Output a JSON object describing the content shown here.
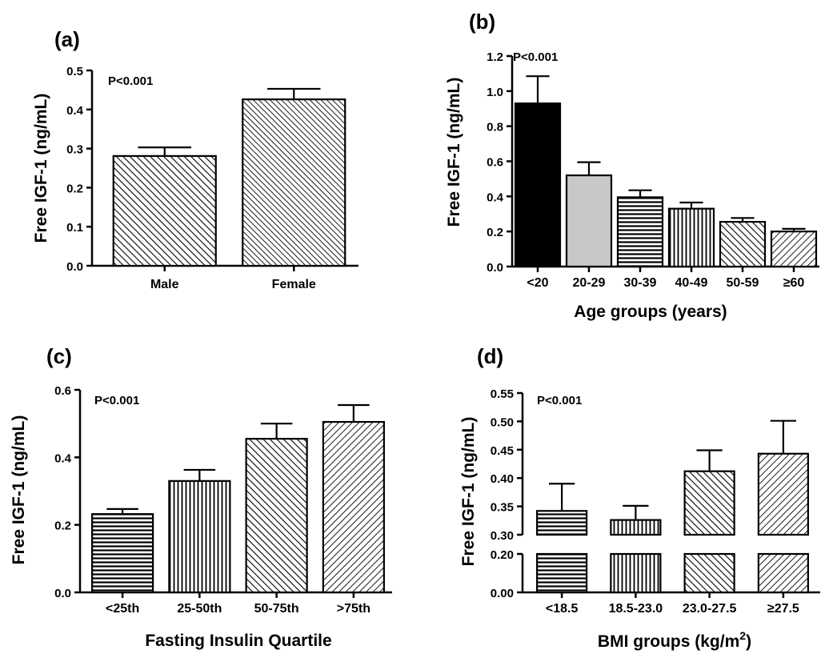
{
  "chart_data": [
    {
      "type": "bar",
      "panel": "(a)",
      "annotation": "P<0.001",
      "ylabel": "Free IGF-1 (ng/mL)",
      "xlabel": "",
      "categories": [
        "Male",
        "Female"
      ],
      "values": [
        0.281,
        0.426
      ],
      "errors": [
        0.022,
        0.027
      ],
      "ylim": [
        0,
        0.5
      ],
      "yticks": [
        "0.0",
        "0.1",
        "0.2",
        "0.3",
        "0.4",
        "0.5"
      ],
      "fills": [
        "hatch-back",
        "hatch-back-dense"
      ]
    },
    {
      "type": "bar",
      "panel": "(b)",
      "annotation": "P<0.001",
      "ylabel": "Free IGF-1 (ng/mL)",
      "xlabel": "Age groups (years)",
      "categories": [
        "<20",
        "20-29",
        "30-39",
        "40-49",
        "50-59",
        "≥60"
      ],
      "values": [
        0.93,
        0.52,
        0.395,
        0.33,
        0.255,
        0.2
      ],
      "errors": [
        0.155,
        0.075,
        0.04,
        0.035,
        0.022,
        0.015
      ],
      "ylim": [
        0,
        1.2
      ],
      "yticks": [
        "0.0",
        "0.2",
        "0.4",
        "0.6",
        "0.8",
        "1.0",
        "1.2"
      ],
      "fills": [
        "solid-black",
        "solid-gray",
        "horizontal",
        "vertical",
        "hatch-back",
        "hatch-fwd"
      ]
    },
    {
      "type": "bar",
      "panel": "(c)",
      "annotation": "P<0.001",
      "ylabel": "Free IGF-1 (ng/mL)",
      "xlabel": "Fasting Insulin Quartile",
      "categories": [
        "<25th",
        "25-50th",
        "50-75th",
        ">75th"
      ],
      "values": [
        0.232,
        0.33,
        0.455,
        0.505
      ],
      "errors": [
        0.015,
        0.033,
        0.045,
        0.05
      ],
      "ylim": [
        0,
        0.6
      ],
      "yticks": [
        "0.0",
        "0.2",
        "0.4",
        "0.6"
      ],
      "fills": [
        "horizontal",
        "vertical",
        "hatch-back",
        "hatch-fwd"
      ]
    },
    {
      "type": "bar",
      "panel": "(d)",
      "annotation": "P<0.001",
      "ylabel": "Free IGF-1 (ng/mL)",
      "xlabel_main": "BMI groups (kg/m",
      "xlabel_sup": "2",
      "xlabel_end": ")",
      "categories": [
        "<18.5",
        "18.5-23.0",
        "23.0-27.5",
        "≥27.5"
      ],
      "values": [
        0.342,
        0.326,
        0.412,
        0.443
      ],
      "errors": [
        0.048,
        0.025,
        0.037,
        0.058
      ],
      "axis_break": {
        "lower": [
          0,
          0.2
        ],
        "upper": [
          0.3,
          0.55
        ]
      },
      "yticks_upper": [
        "0.30",
        "0.35",
        "0.40",
        "0.45",
        "0.50",
        "0.55"
      ],
      "yticks_lower": [
        "0.00",
        "0.20"
      ],
      "fills": [
        "horizontal",
        "vertical",
        "hatch-back",
        "hatch-fwd"
      ]
    }
  ]
}
